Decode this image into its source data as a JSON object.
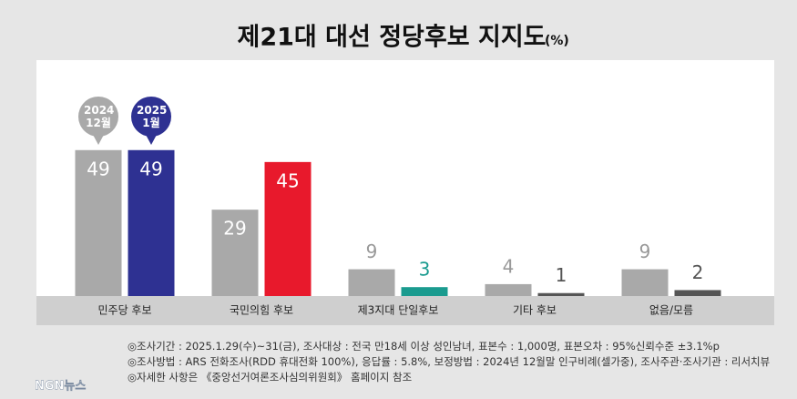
{
  "chart_data": {
    "type": "bar",
    "title": "제21대 대선 정당후보 지지도",
    "unit": "(%)",
    "categories": [
      "민주당 후보",
      "국민의힘 후보",
      "제3지대 단일후보",
      "기타 후보",
      "없음/모름"
    ],
    "series": [
      {
        "name": "2024 12월",
        "color": "#a9a9a9",
        "colors": [
          "#a9a9a9",
          "#a9a9a9",
          "#a9a9a9",
          "#a9a9a9",
          "#a9a9a9"
        ],
        "values": [
          49,
          29,
          9,
          4,
          9
        ]
      },
      {
        "name": "2025 1월",
        "color": "#2e3192",
        "colors": [
          "#2e3192",
          "#e8192c",
          "#1a9b8f",
          "#555555",
          "#555555"
        ],
        "values": [
          49,
          45,
          3,
          1,
          2
        ]
      }
    ],
    "notes": [
      "◎조사기간 : 2025.1.29(수)~31(금), 조사대상 : 전국 만18세 이상 성인남녀, 표본수 : 1,000명, 표본오차 : 95%신뢰수준 ±3.1%p",
      "◎조사방법 : ARS 전화조사(RDD 휴대전화 100%), 응답률 : 5.8%, 보정방법 : 2024년 12월말 인구비례(셀가중), 조사주관·조사기관 : 리서치뷰",
      "◎자세한 사항은 《중앙선거여론조사심의위원회》 홈페이지 참조"
    ],
    "source": "NGN뉴스"
  }
}
